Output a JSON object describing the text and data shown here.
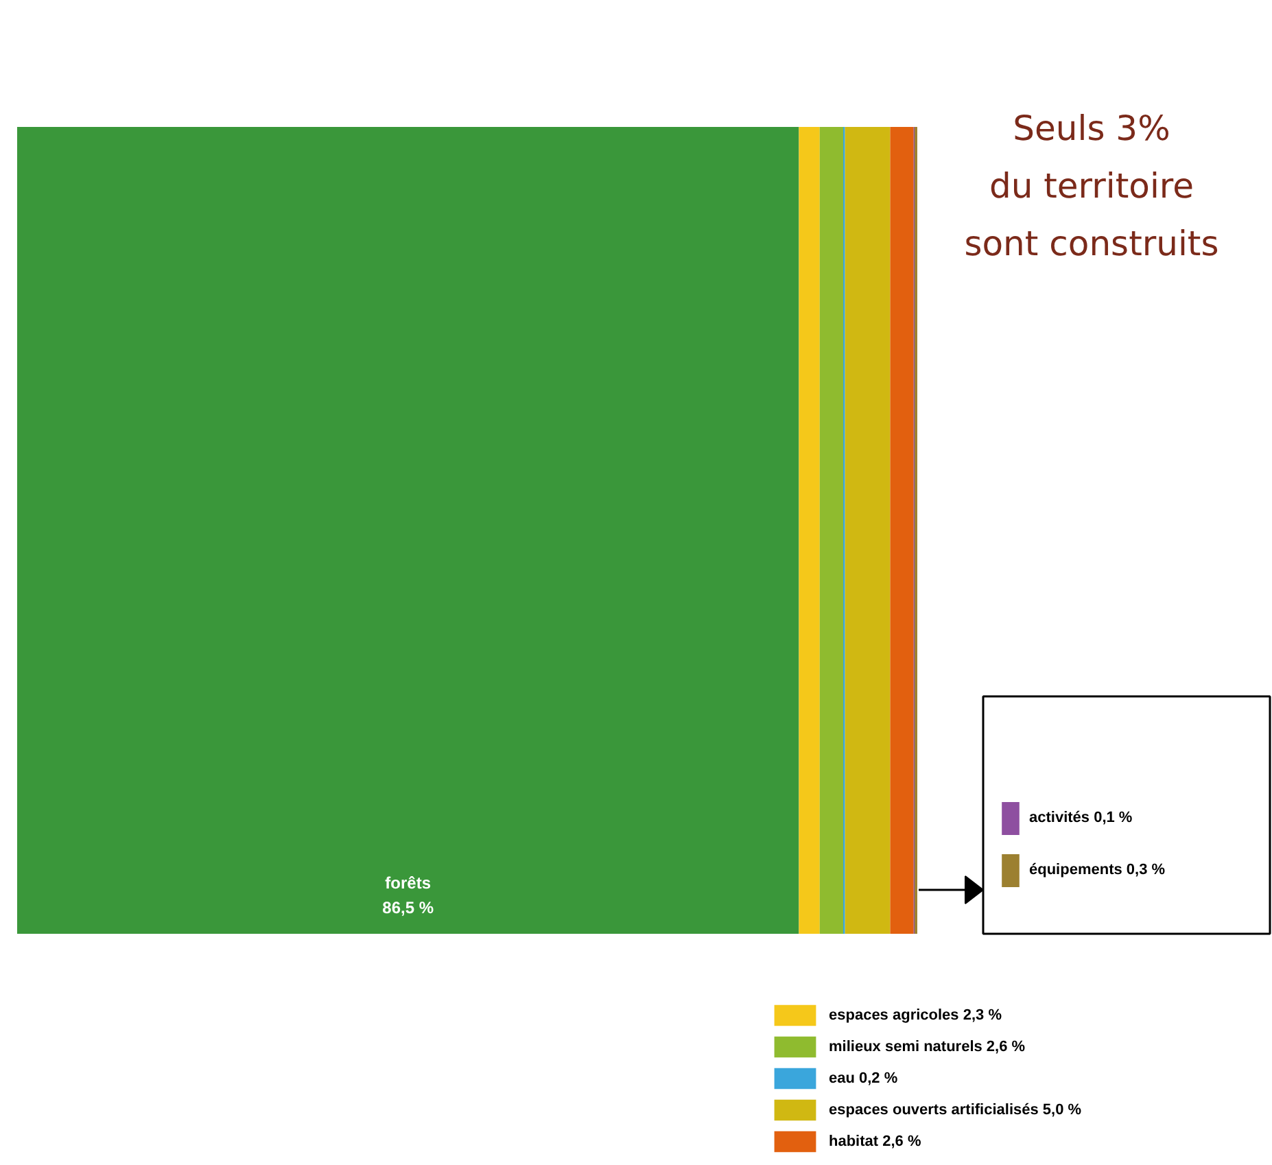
{
  "chart_data": {
    "type": "bar",
    "orientation": "horizontal",
    "stacked": true,
    "categories": [
      null
    ],
    "legend": "bottom",
    "data_labels": false,
    "annotations": [
      "Seuls 3%\ndu territoire\nsont construits"
    ],
    "series": [
      {
        "name": "forêts",
        "color": "#3a973a",
        "values": [
          86.5
        ],
        "value_labels": [
          "86,5 %"
        ]
      },
      {
        "name": "espaces agricoles 2,3 %",
        "color": "#f5c81a",
        "values": [
          2.3
        ]
      },
      {
        "name": "milieux semi naturels 2,6 %",
        "color": "#8fbb2f",
        "values": [
          2.6
        ]
      },
      {
        "name": "eau 0,2 %",
        "color": "#3aa6dc",
        "values": [
          0.2
        ]
      },
      {
        "name": "espaces ouverts artificialisés 5,0 %",
        "color": "#d0b812",
        "values": [
          5.0
        ]
      },
      {
        "name": "habitat 2,6 %",
        "color": "#e2600f",
        "values": [
          2.6
        ]
      },
      {
        "name": "activités 0,1 %",
        "color": "#8e4fa0",
        "values": [
          0.1
        ]
      },
      {
        "name": "équipements 0,3 %",
        "color": "#9c8030",
        "values": [
          0.3
        ]
      }
    ]
  }
}
